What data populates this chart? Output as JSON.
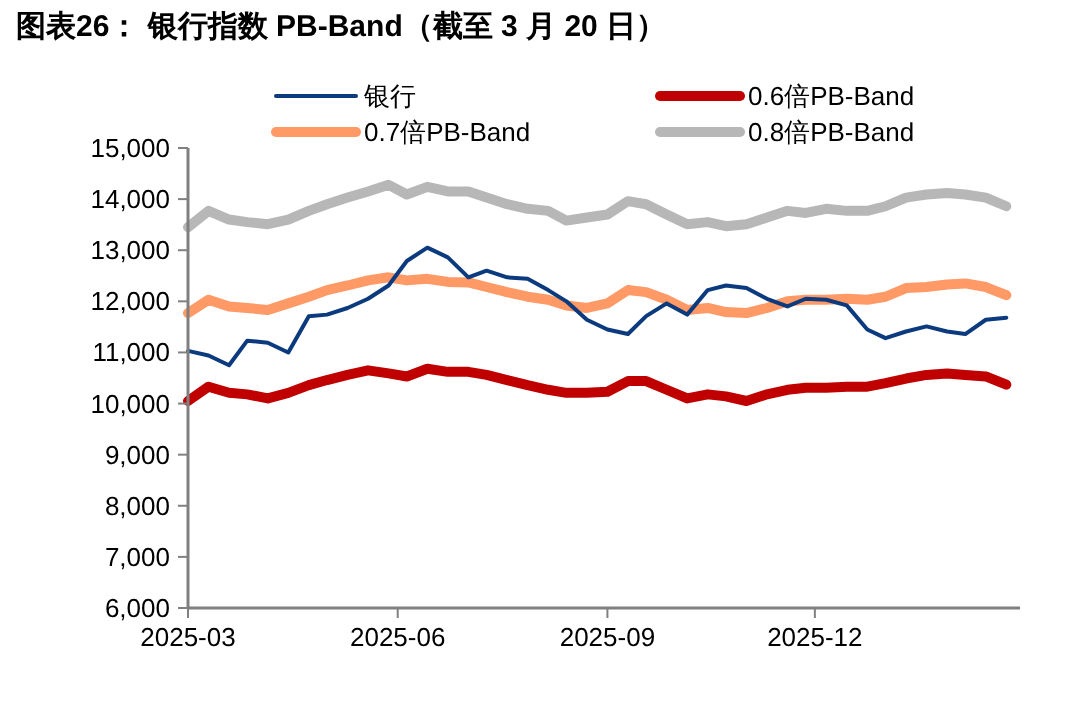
{
  "chart_data": {
    "type": "line",
    "title": "图表26：  银行指数 PB-Band（截至 3 月 20 日）",
    "x": [
      "2025-03-20",
      "2025-03-29",
      "2025-04-07",
      "2025-04-15",
      "2025-04-24",
      "2025-05-03",
      "2025-05-12",
      "2025-05-20",
      "2025-05-29",
      "2025-06-07",
      "2025-06-16",
      "2025-06-24",
      "2025-07-03",
      "2025-07-12",
      "2025-07-21",
      "2025-07-29",
      "2025-08-07",
      "2025-08-16",
      "2025-08-25",
      "2025-09-02",
      "2025-09-11",
      "2025-09-20",
      "2025-09-29",
      "2025-10-07",
      "2025-10-16",
      "2025-10-25",
      "2025-11-03",
      "2025-11-11",
      "2025-11-20",
      "2025-11-29",
      "2025-12-08",
      "2025-12-16",
      "2025-12-25",
      "2026-01-03",
      "2026-01-12",
      "2026-01-20",
      "2026-01-29",
      "2026-02-07",
      "2026-02-16",
      "2026-02-24",
      "2026-03-05",
      "2026-03-14"
    ],
    "series": [
      {
        "name": "银行",
        "color": "#0b3b7e",
        "values": [
          11030,
          10940,
          10750,
          11230,
          11190,
          11000,
          11710,
          11740,
          11870,
          12050,
          12310,
          12790,
          13050,
          12860,
          12470,
          12600,
          12470,
          12440,
          12220,
          12000,
          11640,
          11450,
          11360,
          11710,
          11960,
          11740,
          12220,
          12310,
          12260,
          12050,
          11900,
          12050,
          12030,
          11920,
          11450,
          11280,
          11410,
          11510,
          11410,
          11360,
          11640,
          11680
        ]
      },
      {
        "name": "0.6倍PB-Band",
        "color": "#c00000",
        "values": [
          10050,
          10330,
          10210,
          10180,
          10100,
          10210,
          10360,
          10460,
          10560,
          10650,
          10590,
          10530,
          10680,
          10620,
          10620,
          10560,
          10460,
          10360,
          10270,
          10210,
          10210,
          10230,
          10440,
          10440,
          10270,
          10100,
          10180,
          10140,
          10050,
          10180,
          10270,
          10310,
          10310,
          10330,
          10330,
          10400,
          10490,
          10560,
          10590,
          10560,
          10530,
          10370
        ]
      },
      {
        "name": "0.7倍PB-Band",
        "color": "#ff9966",
        "values": [
          11770,
          12030,
          11900,
          11870,
          11830,
          11960,
          12090,
          12220,
          12310,
          12410,
          12470,
          12410,
          12440,
          12380,
          12370,
          12280,
          12180,
          12090,
          12030,
          11920,
          11870,
          11960,
          12220,
          12180,
          12030,
          11830,
          11870,
          11790,
          11770,
          11870,
          12000,
          12030,
          12030,
          12050,
          12030,
          12090,
          12260,
          12280,
          12330,
          12350,
          12280,
          12120
        ]
      },
      {
        "name": "0.8倍PB-Band",
        "color": "#b7b7b7",
        "values": [
          13450,
          13770,
          13600,
          13550,
          13510,
          13600,
          13770,
          13900,
          14030,
          14150,
          14280,
          14090,
          14240,
          14150,
          14150,
          14030,
          13900,
          13810,
          13770,
          13580,
          13640,
          13700,
          13960,
          13900,
          13700,
          13510,
          13550,
          13470,
          13510,
          13640,
          13770,
          13730,
          13810,
          13770,
          13770,
          13860,
          14030,
          14090,
          14120,
          14090,
          14030,
          13860
        ]
      }
    ],
    "xlim": [
      "2025-03-20",
      "2026-03-20"
    ],
    "xticks": [
      {
        "value": "2025-03-20",
        "label": "2025-03"
      },
      {
        "value": "2025-06-20",
        "label": "2025-06"
      },
      {
        "value": "2025-09-20",
        "label": "2025-09"
      },
      {
        "value": "2025-12-20",
        "label": "2025-12"
      }
    ],
    "ylim": [
      6000,
      15000
    ],
    "yticks": [
      {
        "value": 6000,
        "label": "6,000"
      },
      {
        "value": 7000,
        "label": "7,000"
      },
      {
        "value": 8000,
        "label": "8,000"
      },
      {
        "value": 9000,
        "label": "9,000"
      },
      {
        "value": 10000,
        "label": "10,000"
      },
      {
        "value": 11000,
        "label": "11,000"
      },
      {
        "value": 12000,
        "label": "12,000"
      },
      {
        "value": 13000,
        "label": "13,000"
      },
      {
        "value": 14000,
        "label": "14,000"
      },
      {
        "value": 15000,
        "label": "15,000"
      }
    ],
    "legend": "top",
    "grid": false,
    "marker": "none",
    "line_style": "solid"
  }
}
